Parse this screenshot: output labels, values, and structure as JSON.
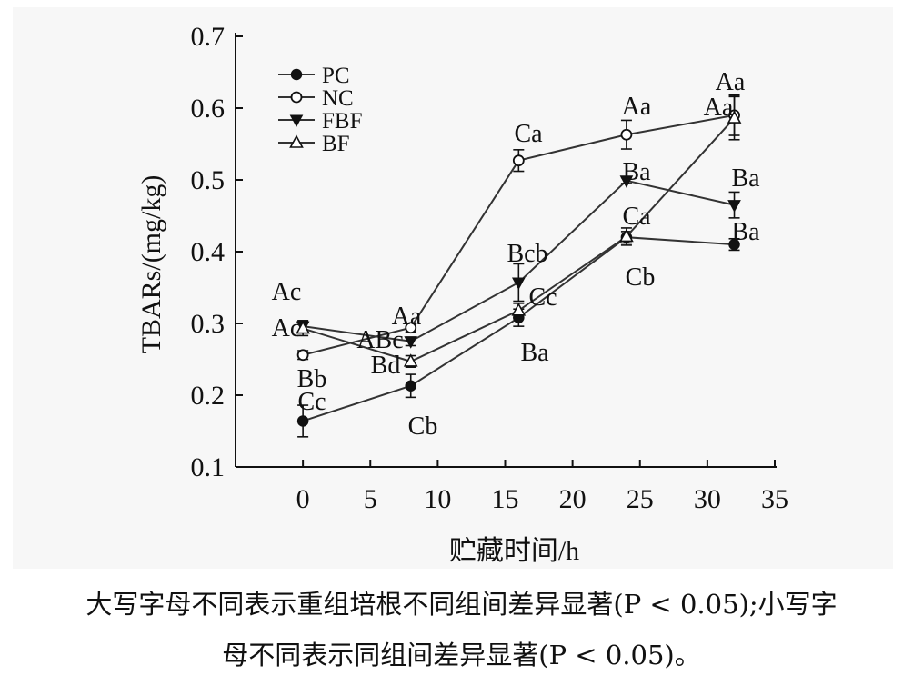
{
  "chart_data": {
    "type": "line",
    "xlabel": "贮藏时间/h",
    "ylabel": "TBARs/(mg/kg)",
    "xlim": [
      -5,
      35
    ],
    "ylim": [
      0.1,
      0.7
    ],
    "xticks": [
      0,
      5,
      10,
      15,
      20,
      25,
      30,
      35
    ],
    "yticks": [
      0.1,
      0.2,
      0.3,
      0.4,
      0.5,
      0.6,
      0.7
    ],
    "legend_position": "top-left",
    "x": [
      0,
      8,
      16,
      24,
      32
    ],
    "series": [
      {
        "name": "PC",
        "marker": "filled-circle",
        "values": [
          0.164,
          0.213,
          0.308,
          0.42,
          0.41
        ],
        "errors": [
          0.022,
          0.016,
          0.012,
          0.008,
          0.008
        ]
      },
      {
        "name": "NC",
        "marker": "open-circle",
        "values": [
          0.256,
          0.294,
          0.527,
          0.563,
          0.59
        ],
        "errors": [
          0.006,
          0.006,
          0.015,
          0.02,
          0.028
        ]
      },
      {
        "name": "FBF",
        "marker": "filled-triangle-down",
        "values": [
          0.296,
          0.275,
          0.357,
          0.499,
          0.465
        ],
        "errors": [
          0.008,
          0.006,
          0.026,
          0.004,
          0.018
        ]
      },
      {
        "name": "BF",
        "marker": "open-triangle-up",
        "values": [
          0.293,
          0.247,
          0.318,
          0.421,
          0.586
        ],
        "errors": [
          0.01,
          0.008,
          0.01,
          0.012,
          0.03
        ]
      }
    ],
    "annotations": [
      "Ac",
      "Ac",
      "Bb",
      "Cc",
      "Aa",
      "ABc",
      "Bd",
      "Cb",
      "Ca",
      "Bcb",
      "Cc",
      "Ba",
      "Aa",
      "Ba",
      "Ca",
      "Cb",
      "Aa",
      "Aa",
      "Ba",
      "Ba"
    ]
  },
  "caption": {
    "line1": "大写字母不同表示重组培根不同组间差异显著(P < 0.05);小写字",
    "line2": "母不同表示同组间差异显著(P < 0.05)。"
  },
  "colors": {
    "axis": "#111111",
    "series": "#333333",
    "background": "#f7f7f7"
  }
}
